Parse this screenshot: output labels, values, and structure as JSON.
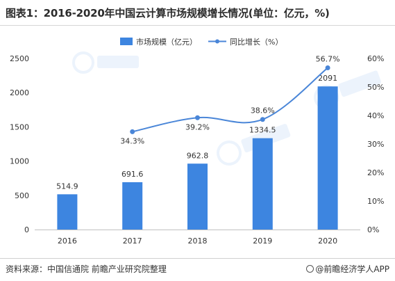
{
  "title": "图表1：2016-2020年中国云计算市场规模增长情况(单位：亿元，%)",
  "source": "资料来源：中国信通院 前瞻产业研究院整理",
  "brand": "@前瞻经济学人APP",
  "colors": {
    "bar": "#3d85e0",
    "line": "#4a86d8",
    "axis": "#bfbfbf",
    "text": "#333333"
  },
  "chart_data": {
    "type": "bar",
    "categories": [
      "2016",
      "2017",
      "2018",
      "2019",
      "2020"
    ],
    "series": [
      {
        "name": "市场规模（亿元）",
        "type": "bar",
        "axis": "left",
        "values": [
          514.9,
          691.6,
          962.8,
          1334.5,
          2091
        ],
        "labels": [
          "514.9",
          "691.6",
          "962.8",
          "1334.5",
          "2091"
        ]
      },
      {
        "name": "同比增长（%）",
        "type": "line",
        "axis": "right",
        "values": [
          null,
          34.3,
          39.2,
          38.6,
          56.7
        ],
        "labels": [
          "",
          "34.3%",
          "39.2%",
          "38.6%",
          "56.7%"
        ]
      }
    ],
    "y_left": {
      "min": 0,
      "max": 2500,
      "ticks": [
        "0",
        "500",
        "1000",
        "1500",
        "2000",
        "2500"
      ]
    },
    "y_right": {
      "min": 0,
      "max": 60,
      "ticks": [
        "0%",
        "10%",
        "20%",
        "30%",
        "40%",
        "50%",
        "60%"
      ]
    },
    "grid": false,
    "legend_position": "top-left"
  }
}
